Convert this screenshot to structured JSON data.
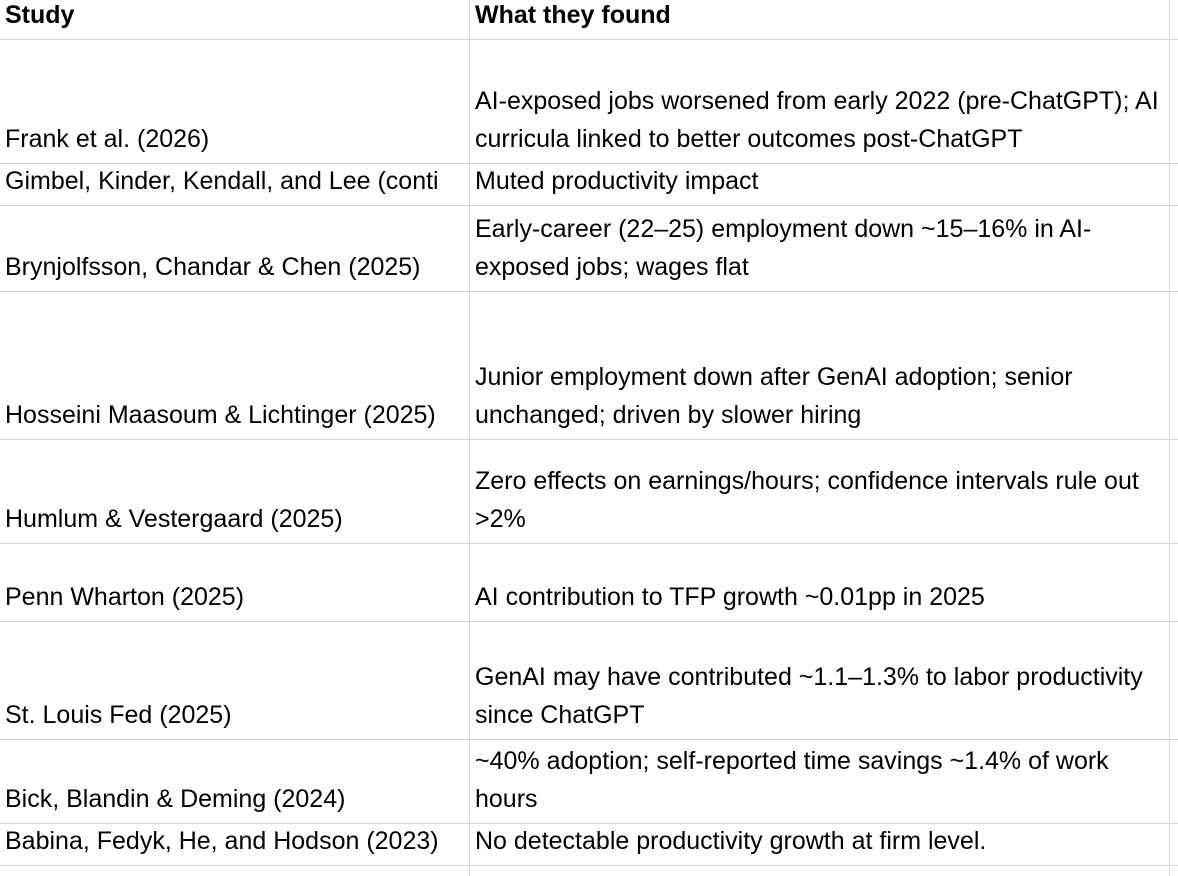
{
  "table": {
    "headers": [
      "Study",
      "What they found"
    ],
    "rows": [
      {
        "study": "Frank et al. (2026)",
        "found": "AI-exposed jobs worsened from early 2022 (pre-ChatGPT); AI curricula linked to better outcomes post-ChatGPT"
      },
      {
        "study": "Gimbel, Kinder, Kendall, and Lee (conti",
        "found": "Muted productivity impact"
      },
      {
        "study": "Brynjolfsson, Chandar & Chen (2025)",
        "found": "Early-career (22–25) employment down ~15–16% in AI-exposed jobs; wages flat"
      },
      {
        "study": "Hosseini Maasoum & Lichtinger (2025)",
        "found": "Junior employment down after GenAI adoption; senior unchanged; driven by slower hiring"
      },
      {
        "study": "Humlum & Vestergaard (2025)",
        "found": "Zero effects on earnings/hours; confidence intervals rule out >2%"
      },
      {
        "study": "Penn Wharton (2025)",
        "found": "AI contribution to TFP growth ~0.01pp in 2025"
      },
      {
        "study": "St. Louis Fed (2025)",
        "found": "GenAI may have contributed ~1.1–1.3% to labor productivity since ChatGPT"
      },
      {
        "study": "Bick, Blandin & Deming (2024)",
        "found": "~40% adoption; self-reported time savings ~1.4% of work hours"
      },
      {
        "study": "Babina, Fedyk, He, and Hodson (2023)",
        "found": "No detectable productivity growth at firm level."
      }
    ]
  }
}
